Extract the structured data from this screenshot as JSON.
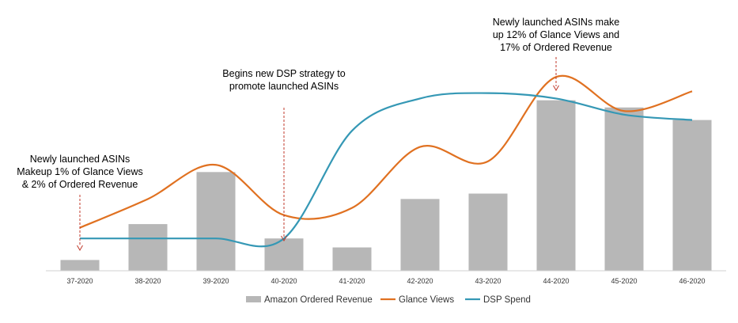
{
  "chart_data": {
    "type": "bar+line",
    "categories": [
      "37-2020",
      "38-2020",
      "39-2020",
      "40-2020",
      "41-2020",
      "42-2020",
      "43-2020",
      "44-2020",
      "45-2020",
      "46-2020"
    ],
    "series": [
      {
        "name": "Amazon Ordered Revenue",
        "kind": "bar",
        "color": "#b7b7b7",
        "values": [
          6,
          26,
          55,
          18,
          13,
          40,
          43,
          95,
          91,
          84
        ]
      },
      {
        "name": "Glance Views",
        "kind": "line",
        "color": "#e07121",
        "values": [
          24,
          40,
          59,
          31,
          35,
          69,
          61,
          108,
          89,
          100
        ]
      },
      {
        "name": "DSP Spend",
        "kind": "line",
        "color": "#3598b5",
        "values": [
          18,
          18,
          18,
          18,
          78,
          96,
          99,
          96,
          87,
          84
        ]
      }
    ],
    "ylim": [
      0,
      120
    ],
    "legend_position": "bottom",
    "annotations": [
      {
        "category_index": 0,
        "lines": [
          "Newly launched ASINs",
          "Makeup 1% of Glance Views",
          "& 2% of Ordered Revenue"
        ]
      },
      {
        "category_index": 3,
        "lines": [
          "Begins new DSP strategy to",
          "promote launched ASINs"
        ]
      },
      {
        "category_index": 7,
        "lines": [
          "Newly launched ASINs make",
          "up 12% of Glance Views and",
          "17% of Ordered Revenue"
        ]
      }
    ]
  }
}
